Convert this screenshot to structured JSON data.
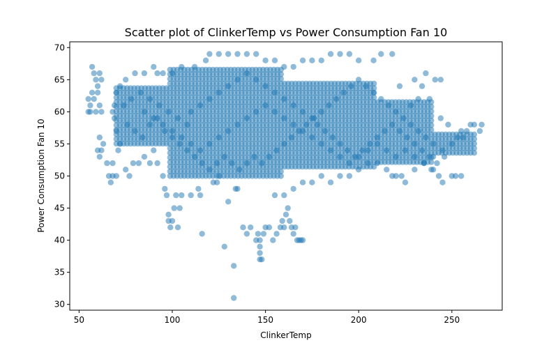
{
  "chart_data": {
    "type": "scatter",
    "title": "Scatter plot of ClinkerTemp vs Power Consumption Fan 10",
    "xlabel": "ClinkerTemp",
    "ylabel": "Power Consumption Fan 10",
    "xlim": [
      45,
      277
    ],
    "ylim": [
      29.1,
      70.9
    ],
    "xticks": [
      50,
      100,
      150,
      200,
      250
    ],
    "yticks": [
      30,
      35,
      40,
      45,
      50,
      55,
      60,
      65,
      70
    ],
    "grid": false,
    "point_color": "#1f77b4",
    "point_alpha": 0.5,
    "series": [
      {
        "points": [
          [
            57,
            67
          ],
          [
            58,
            66
          ],
          [
            59,
            65
          ],
          [
            60,
            64
          ],
          [
            61,
            66
          ],
          [
            62,
            65
          ],
          [
            57,
            63
          ],
          [
            55,
            62
          ],
          [
            56,
            61
          ],
          [
            55,
            60
          ],
          [
            56,
            60
          ],
          [
            58,
            62
          ],
          [
            60,
            63
          ],
          [
            61,
            61
          ],
          [
            59,
            60
          ],
          [
            62,
            60
          ],
          [
            61,
            56
          ],
          [
            60,
            54
          ],
          [
            61,
            53
          ],
          [
            62,
            54
          ],
          [
            63,
            55
          ],
          [
            65,
            52
          ],
          [
            66,
            50
          ],
          [
            67,
            49
          ],
          [
            68,
            52
          ],
          [
            68,
            50
          ],
          [
            71,
            54
          ],
          [
            70,
            50
          ],
          [
            75,
            51
          ],
          [
            77,
            50
          ],
          [
            79,
            52
          ],
          [
            82,
            52
          ],
          [
            85,
            53
          ],
          [
            88,
            52
          ],
          [
            90,
            54
          ],
          [
            92,
            52
          ],
          [
            95,
            50
          ],
          [
            96,
            48
          ],
          [
            97,
            47
          ],
          [
            98,
            44
          ],
          [
            98,
            43
          ],
          [
            99,
            42
          ],
          [
            100,
            43
          ],
          [
            101,
            45
          ],
          [
            102,
            47
          ],
          [
            103,
            42
          ],
          [
            104,
            45
          ],
          [
            105,
            47
          ],
          [
            110,
            47
          ],
          [
            115,
            47
          ],
          [
            114,
            48
          ],
          [
            116,
            41
          ],
          [
            122,
            49
          ],
          [
            124,
            49
          ],
          [
            125,
            50
          ],
          [
            128,
            39
          ],
          [
            130,
            46
          ],
          [
            133,
            36
          ],
          [
            133,
            31
          ],
          [
            134,
            48
          ],
          [
            135,
            48
          ],
          [
            138,
            42
          ],
          [
            140,
            41
          ],
          [
            142,
            42
          ],
          [
            145,
            40
          ],
          [
            146,
            41
          ],
          [
            147,
            40
          ],
          [
            147,
            39
          ],
          [
            147,
            38
          ],
          [
            147,
            37
          ],
          [
            148,
            37
          ],
          [
            149,
            41
          ],
          [
            150,
            42
          ],
          [
            152,
            42
          ],
          [
            154,
            40
          ],
          [
            156,
            41
          ],
          [
            158,
            42
          ],
          [
            159,
            43
          ],
          [
            160,
            42
          ],
          [
            161,
            44
          ],
          [
            162,
            45
          ],
          [
            163,
            43
          ],
          [
            164,
            42
          ],
          [
            165,
            41
          ],
          [
            166,
            42
          ],
          [
            167,
            40
          ],
          [
            168,
            40
          ],
          [
            169,
            40
          ],
          [
            170,
            40
          ],
          [
            155,
            47
          ],
          [
            160,
            47
          ],
          [
            165,
            48
          ],
          [
            170,
            49
          ],
          [
            175,
            49
          ],
          [
            180,
            50
          ],
          [
            185,
            49
          ],
          [
            190,
            50
          ],
          [
            195,
            50
          ],
          [
            200,
            51
          ],
          [
            205,
            52
          ],
          [
            210,
            52
          ],
          [
            215,
            51
          ],
          [
            218,
            50
          ],
          [
            220,
            50
          ],
          [
            223,
            50
          ],
          [
            225,
            49
          ],
          [
            230,
            51
          ],
          [
            235,
            52
          ],
          [
            240,
            51
          ],
          [
            245,
            49
          ],
          [
            250,
            50
          ],
          [
            252,
            50
          ],
          [
            255,
            50
          ],
          [
            240,
            53
          ],
          [
            245,
            54
          ],
          [
            250,
            55
          ],
          [
            253,
            56
          ],
          [
            255,
            57
          ],
          [
            258,
            57
          ],
          [
            260,
            58
          ],
          [
            262,
            58
          ],
          [
            265,
            57
          ],
          [
            266,
            58
          ],
          [
            256,
            56
          ],
          [
            248,
            58
          ],
          [
            244,
            59
          ],
          [
            238,
            62
          ],
          [
            234,
            64
          ],
          [
            230,
            65
          ],
          [
            236,
            66
          ],
          [
            241,
            65
          ],
          [
            244,
            65
          ],
          [
            232,
            62
          ],
          [
            228,
            61
          ],
          [
            222,
            64
          ],
          [
            218,
            69
          ],
          [
            212,
            69
          ],
          [
            208,
            68
          ],
          [
            200,
            68
          ],
          [
            195,
            69
          ],
          [
            190,
            69
          ],
          [
            185,
            69
          ],
          [
            180,
            68
          ],
          [
            175,
            68
          ],
          [
            170,
            68
          ],
          [
            165,
            67
          ],
          [
            160,
            67
          ],
          [
            155,
            68
          ],
          [
            150,
            68
          ],
          [
            145,
            69
          ],
          [
            140,
            69
          ],
          [
            135,
            69
          ],
          [
            130,
            69
          ],
          [
            125,
            69
          ],
          [
            120,
            69
          ],
          [
            118,
            68
          ],
          [
            112,
            67
          ],
          [
            105,
            67
          ],
          [
            100,
            66
          ],
          [
            95,
            66
          ],
          [
            92,
            66
          ],
          [
            90,
            67
          ],
          [
            85,
            66
          ],
          [
            80,
            66
          ],
          [
            75,
            65
          ],
          [
            72,
            64
          ],
          [
            70,
            63
          ],
          [
            69,
            61
          ],
          [
            68,
            60
          ],
          [
            69,
            59
          ],
          [
            70,
            57
          ],
          [
            72,
            55
          ],
          [
            76,
            58
          ],
          [
            80,
            57
          ],
          [
            84,
            56
          ],
          [
            88,
            58
          ],
          [
            92,
            59
          ],
          [
            96,
            57
          ],
          [
            100,
            56
          ],
          [
            104,
            55
          ],
          [
            108,
            54
          ],
          [
            112,
            53
          ],
          [
            116,
            52
          ],
          [
            120,
            51
          ],
          [
            124,
            52
          ],
          [
            128,
            53
          ],
          [
            132,
            52
          ],
          [
            136,
            51
          ],
          [
            140,
            52
          ],
          [
            144,
            53
          ],
          [
            148,
            52
          ],
          [
            152,
            53
          ],
          [
            156,
            54
          ],
          [
            160,
            55
          ],
          [
            164,
            56
          ],
          [
            168,
            57
          ],
          [
            172,
            58
          ],
          [
            176,
            59
          ],
          [
            180,
            60
          ],
          [
            184,
            61
          ],
          [
            188,
            62
          ],
          [
            192,
            63
          ],
          [
            196,
            64
          ],
          [
            200,
            65
          ],
          [
            204,
            64
          ],
          [
            208,
            63
          ],
          [
            212,
            62
          ],
          [
            216,
            61
          ],
          [
            220,
            60
          ],
          [
            224,
            59
          ],
          [
            228,
            58
          ],
          [
            232,
            57
          ],
          [
            236,
            56
          ],
          [
            240,
            55
          ],
          [
            110,
            60
          ],
          [
            115,
            61
          ],
          [
            120,
            62
          ],
          [
            125,
            63
          ],
          [
            130,
            64
          ],
          [
            135,
            65
          ],
          [
            140,
            66
          ],
          [
            145,
            65
          ],
          [
            150,
            64
          ],
          [
            155,
            63
          ],
          [
            160,
            62
          ],
          [
            165,
            61
          ],
          [
            170,
            60
          ],
          [
            175,
            59
          ],
          [
            178,
            58
          ],
          [
            182,
            57
          ],
          [
            186,
            56
          ],
          [
            190,
            55
          ],
          [
            194,
            54
          ],
          [
            198,
            53
          ],
          [
            202,
            54
          ],
          [
            206,
            55
          ],
          [
            210,
            56
          ],
          [
            214,
            57
          ],
          [
            218,
            58
          ],
          [
            222,
            57
          ],
          [
            226,
            56
          ],
          [
            230,
            55
          ],
          [
            234,
            54
          ],
          [
            238,
            53
          ],
          [
            242,
            52
          ],
          [
            246,
            53
          ],
          [
            108,
            58
          ],
          [
            103,
            59
          ],
          [
            98,
            60
          ],
          [
            93,
            61
          ],
          [
            88,
            62
          ],
          [
            83,
            63
          ],
          [
            78,
            62
          ],
          [
            74,
            61
          ],
          [
            85,
            60
          ],
          [
            90,
            59
          ],
          [
            95,
            58
          ],
          [
            100,
            57
          ],
          [
            105,
            56
          ],
          [
            110,
            55
          ],
          [
            115,
            54
          ],
          [
            120,
            55
          ],
          [
            125,
            56
          ],
          [
            130,
            57
          ],
          [
            135,
            58
          ],
          [
            140,
            59
          ],
          [
            145,
            60
          ],
          [
            150,
            61
          ],
          [
            155,
            60
          ],
          [
            160,
            59
          ],
          [
            165,
            58
          ],
          [
            170,
            57
          ],
          [
            175,
            56
          ],
          [
            180,
            55
          ],
          [
            185,
            54
          ],
          [
            190,
            53
          ],
          [
            195,
            52
          ],
          [
            200,
            53
          ],
          [
            205,
            54
          ],
          [
            210,
            55
          ],
          [
            215,
            54
          ],
          [
            220,
            53
          ],
          [
            225,
            54
          ],
          [
            230,
            53
          ],
          [
            235,
            52
          ],
          [
            239,
            51
          ],
          [
            243,
            50
          ]
        ]
      }
    ]
  }
}
